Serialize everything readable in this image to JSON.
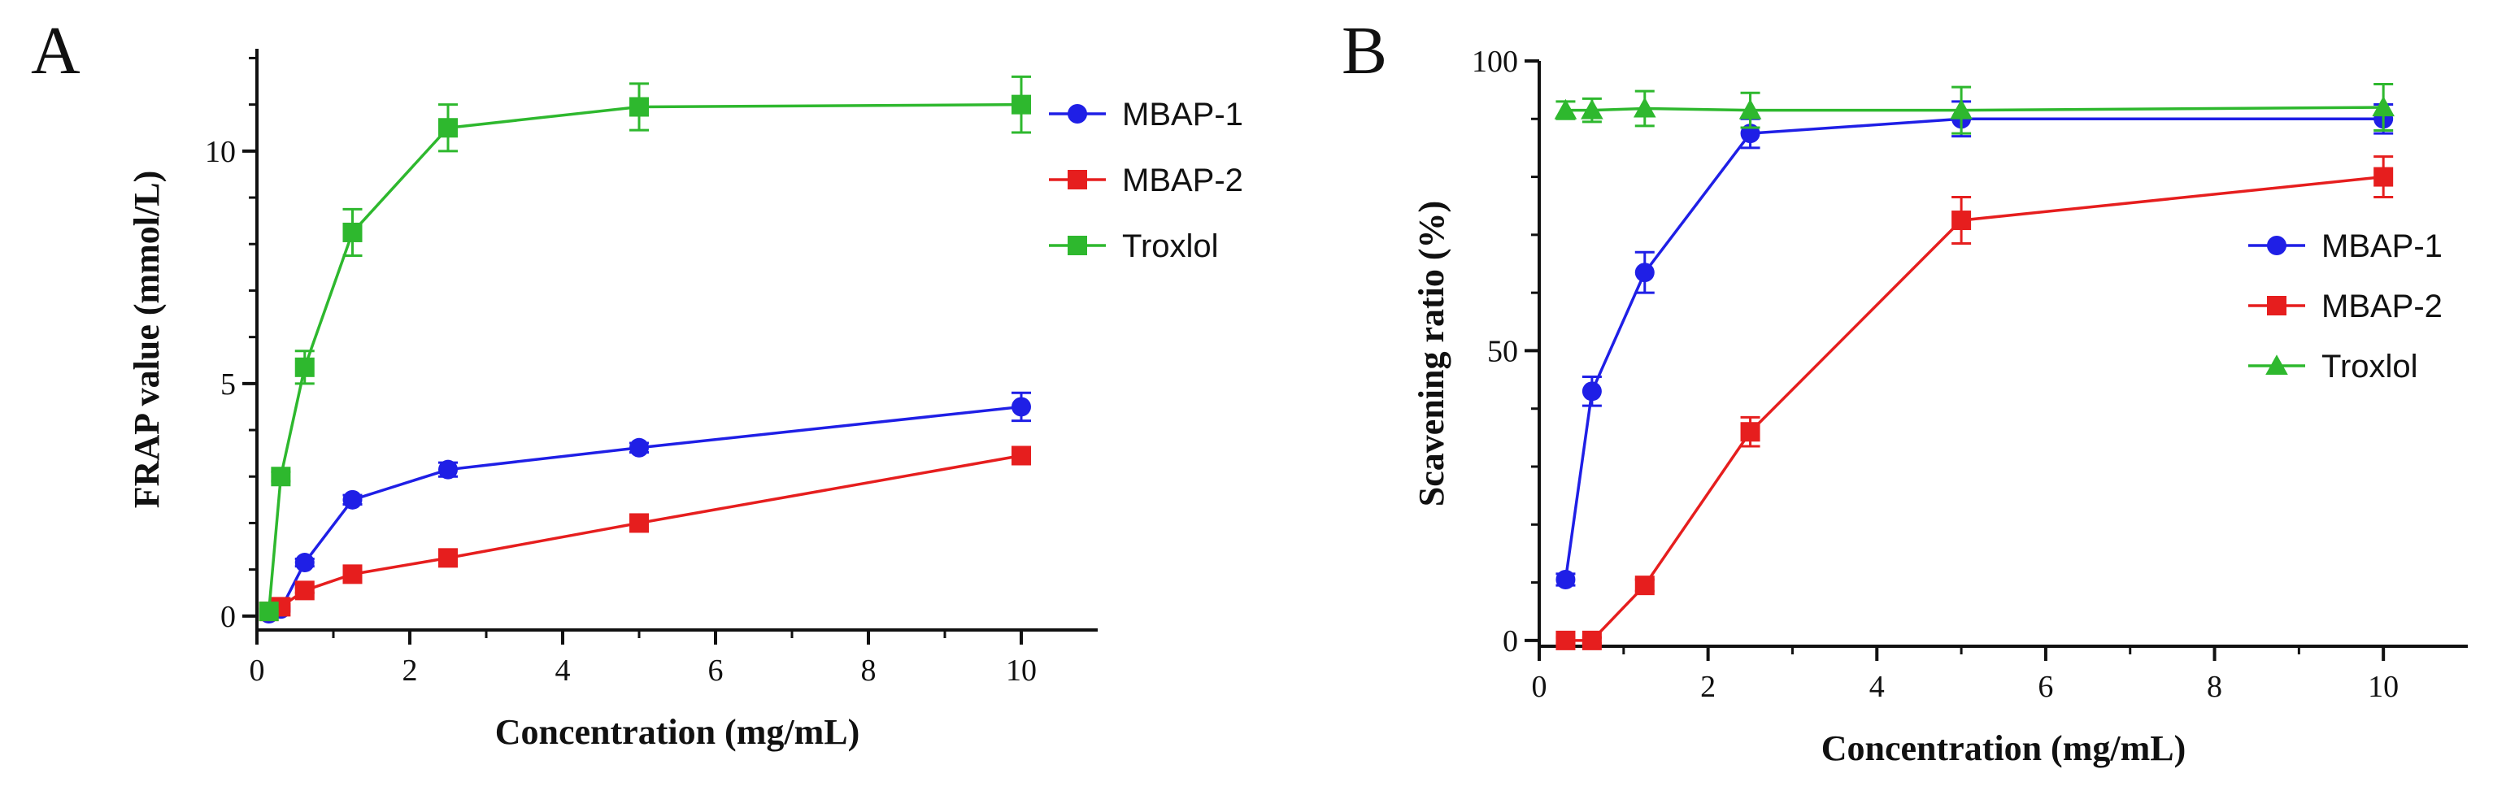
{
  "chart_data": [
    {
      "panel": "A",
      "type": "line",
      "xlabel": "Concentration (mg/mL)",
      "ylabel": "FRAP value (mmol/L)",
      "xlim": [
        0,
        11
      ],
      "ylim": [
        -0.3,
        12.2
      ],
      "xticks": [
        0,
        2,
        4,
        6,
        8,
        10
      ],
      "yticks": [
        0,
        5,
        10
      ],
      "legend_position": "top-right",
      "series": [
        {
          "name": "MBAP-1",
          "color": "#1f1fe6",
          "marker": "circle",
          "x": [
            0.156,
            0.3125,
            0.625,
            1.25,
            2.5,
            5,
            10
          ],
          "y": [
            0.05,
            0.15,
            1.15,
            2.5,
            3.15,
            3.62,
            4.5
          ],
          "err": [
            0.05,
            0.05,
            0.08,
            0.1,
            0.15,
            0.1,
            0.3
          ]
        },
        {
          "name": "MBAP-2",
          "color": "#e61e1e",
          "marker": "square",
          "x": [
            0.156,
            0.3125,
            0.625,
            1.25,
            2.5,
            5,
            10
          ],
          "y": [
            0.1,
            0.2,
            0.55,
            0.9,
            1.25,
            2.0,
            3.45
          ],
          "err": [
            0.05,
            0.05,
            0.05,
            0.08,
            0.08,
            0.12,
            0.15
          ]
        },
        {
          "name": "Troxlol",
          "color": "#2eb82e",
          "marker": "square",
          "x": [
            0.156,
            0.3125,
            0.625,
            1.25,
            2.5,
            5,
            10
          ],
          "y": [
            0.1,
            3.0,
            5.35,
            8.25,
            10.5,
            10.95,
            11.0
          ],
          "err": [
            0.05,
            0.1,
            0.35,
            0.5,
            0.5,
            0.5,
            0.6
          ]
        }
      ]
    },
    {
      "panel": "B",
      "type": "line",
      "xlabel": "Concentration (mg/mL)",
      "ylabel": "Scavening ratio (%)",
      "xlim": [
        0,
        11
      ],
      "ylim": [
        -1,
        100
      ],
      "xticks": [
        0,
        2,
        4,
        6,
        8,
        10
      ],
      "yticks": [
        0,
        50,
        100
      ],
      "legend_position": "center-right",
      "series": [
        {
          "name": "MBAP-1",
          "color": "#1f1fe6",
          "marker": "circle",
          "x": [
            0.3125,
            0.625,
            1.25,
            2.5,
            5,
            10
          ],
          "y": [
            10.5,
            43.0,
            63.5,
            87.5,
            90.0,
            90.0
          ],
          "err": [
            1.0,
            2.5,
            3.5,
            2.5,
            3.0,
            2.5
          ]
        },
        {
          "name": "MBAP-2",
          "color": "#e61e1e",
          "marker": "square",
          "x": [
            0.3125,
            0.625,
            1.25,
            2.5,
            5,
            10
          ],
          "y": [
            0,
            0,
            9.5,
            36.0,
            72.5,
            80.0
          ],
          "err": [
            0.5,
            0.5,
            1.0,
            2.5,
            4.0,
            3.5
          ]
        },
        {
          "name": "Troxlol",
          "color": "#2eb82e",
          "marker": "triangle",
          "x": [
            0.3125,
            0.625,
            1.25,
            2.5,
            5,
            10
          ],
          "y": [
            91.5,
            91.5,
            91.8,
            91.5,
            91.5,
            92.0
          ],
          "err": [
            1.5,
            2.0,
            3.0,
            3.0,
            4.0,
            4.0
          ]
        }
      ]
    }
  ]
}
